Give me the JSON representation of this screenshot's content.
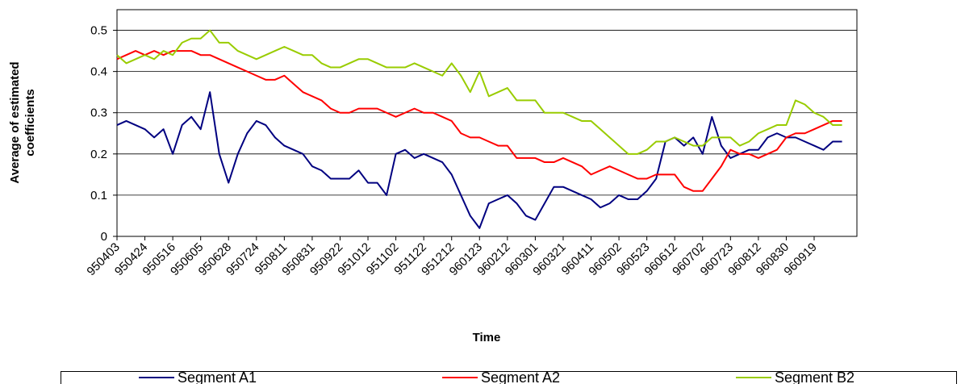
{
  "chart_data": {
    "type": "line",
    "ylabel": [
      "Average of estimated",
      "coefficients"
    ],
    "xlabel": "Time",
    "categories": [
      "950403",
      null,
      null,
      "950424",
      null,
      null,
      "950516",
      null,
      null,
      "950605",
      null,
      null,
      "950628",
      null,
      null,
      "950724",
      null,
      null,
      "950811",
      null,
      null,
      "950831",
      null,
      null,
      "950922",
      null,
      null,
      "951012",
      null,
      null,
      "951102",
      null,
      null,
      "951122",
      null,
      null,
      "951212",
      null,
      null,
      "960123",
      null,
      null,
      "960212",
      null,
      null,
      "960301",
      null,
      null,
      "960321",
      null,
      null,
      "960411",
      null,
      null,
      "960502",
      null,
      null,
      "960523",
      null,
      null,
      "960612",
      null,
      null,
      "960702",
      null,
      null,
      "960723",
      null,
      null,
      "960812",
      null,
      null,
      "960830",
      null,
      null,
      "960919",
      null,
      null,
      null
    ],
    "series": [
      {
        "name": "Segment A1",
        "color": "#000080",
        "values": [
          0.27,
          0.28,
          0.27,
          0.26,
          0.24,
          0.26,
          0.2,
          0.27,
          0.29,
          0.26,
          0.35,
          0.2,
          0.13,
          0.2,
          0.25,
          0.28,
          0.27,
          0.24,
          0.22,
          0.21,
          0.2,
          0.17,
          0.16,
          0.14,
          0.14,
          0.14,
          0.16,
          0.13,
          0.13,
          0.1,
          0.2,
          0.21,
          0.19,
          0.2,
          0.19,
          0.18,
          0.15,
          0.1,
          0.05,
          0.02,
          0.08,
          0.09,
          0.1,
          0.08,
          0.05,
          0.04,
          0.08,
          0.12,
          0.12,
          0.11,
          0.1,
          0.09,
          0.07,
          0.08,
          0.1,
          0.09,
          0.09,
          0.11,
          0.14,
          0.23,
          0.24,
          0.22,
          0.24,
          0.2,
          0.29,
          0.22,
          0.19,
          0.2,
          0.21,
          0.21,
          0.24,
          0.25,
          0.24,
          0.24,
          0.23,
          0.22,
          0.21,
          0.23,
          0.23
        ]
      },
      {
        "name": "Segment A2",
        "color": "#ff0000",
        "values": [
          0.43,
          0.44,
          0.45,
          0.44,
          0.45,
          0.44,
          0.45,
          0.45,
          0.45,
          0.44,
          0.44,
          0.43,
          0.42,
          0.41,
          0.4,
          0.39,
          0.38,
          0.38,
          0.39,
          0.37,
          0.35,
          0.34,
          0.33,
          0.31,
          0.3,
          0.3,
          0.31,
          0.31,
          0.31,
          0.3,
          0.29,
          0.3,
          0.31,
          0.3,
          0.3,
          0.29,
          0.28,
          0.25,
          0.24,
          0.24,
          0.23,
          0.22,
          0.22,
          0.19,
          0.19,
          0.19,
          0.18,
          0.18,
          0.19,
          0.18,
          0.17,
          0.15,
          0.16,
          0.17,
          0.16,
          0.15,
          0.14,
          0.14,
          0.15,
          0.15,
          0.15,
          0.12,
          0.11,
          0.11,
          0.14,
          0.17,
          0.21,
          0.2,
          0.2,
          0.19,
          0.2,
          0.21,
          0.24,
          0.25,
          0.25,
          0.26,
          0.27,
          0.28,
          0.28
        ]
      },
      {
        "name": "Segment B2",
        "color": "#99cc00",
        "values": [
          0.44,
          0.42,
          0.43,
          0.44,
          0.43,
          0.45,
          0.44,
          0.47,
          0.48,
          0.48,
          0.5,
          0.47,
          0.47,
          0.45,
          0.44,
          0.43,
          0.44,
          0.45,
          0.46,
          0.45,
          0.44,
          0.44,
          0.42,
          0.41,
          0.41,
          0.42,
          0.43,
          0.43,
          0.42,
          0.41,
          0.41,
          0.41,
          0.42,
          0.41,
          0.4,
          0.39,
          0.42,
          0.39,
          0.35,
          0.4,
          0.34,
          0.35,
          0.36,
          0.33,
          0.33,
          0.33,
          0.3,
          0.3,
          0.3,
          0.29,
          0.28,
          0.28,
          0.26,
          0.24,
          0.22,
          0.2,
          0.2,
          0.21,
          0.23,
          0.23,
          0.24,
          0.23,
          0.22,
          0.22,
          0.24,
          0.24,
          0.24,
          0.22,
          0.23,
          0.25,
          0.26,
          0.27,
          0.27,
          0.33,
          0.32,
          0.3,
          0.29,
          0.27,
          0.27
        ]
      }
    ],
    "ylim": [
      0,
      0.55
    ],
    "yticks": [
      0,
      0.1,
      0.2,
      0.3,
      0.4,
      0.5
    ],
    "grid": true
  }
}
